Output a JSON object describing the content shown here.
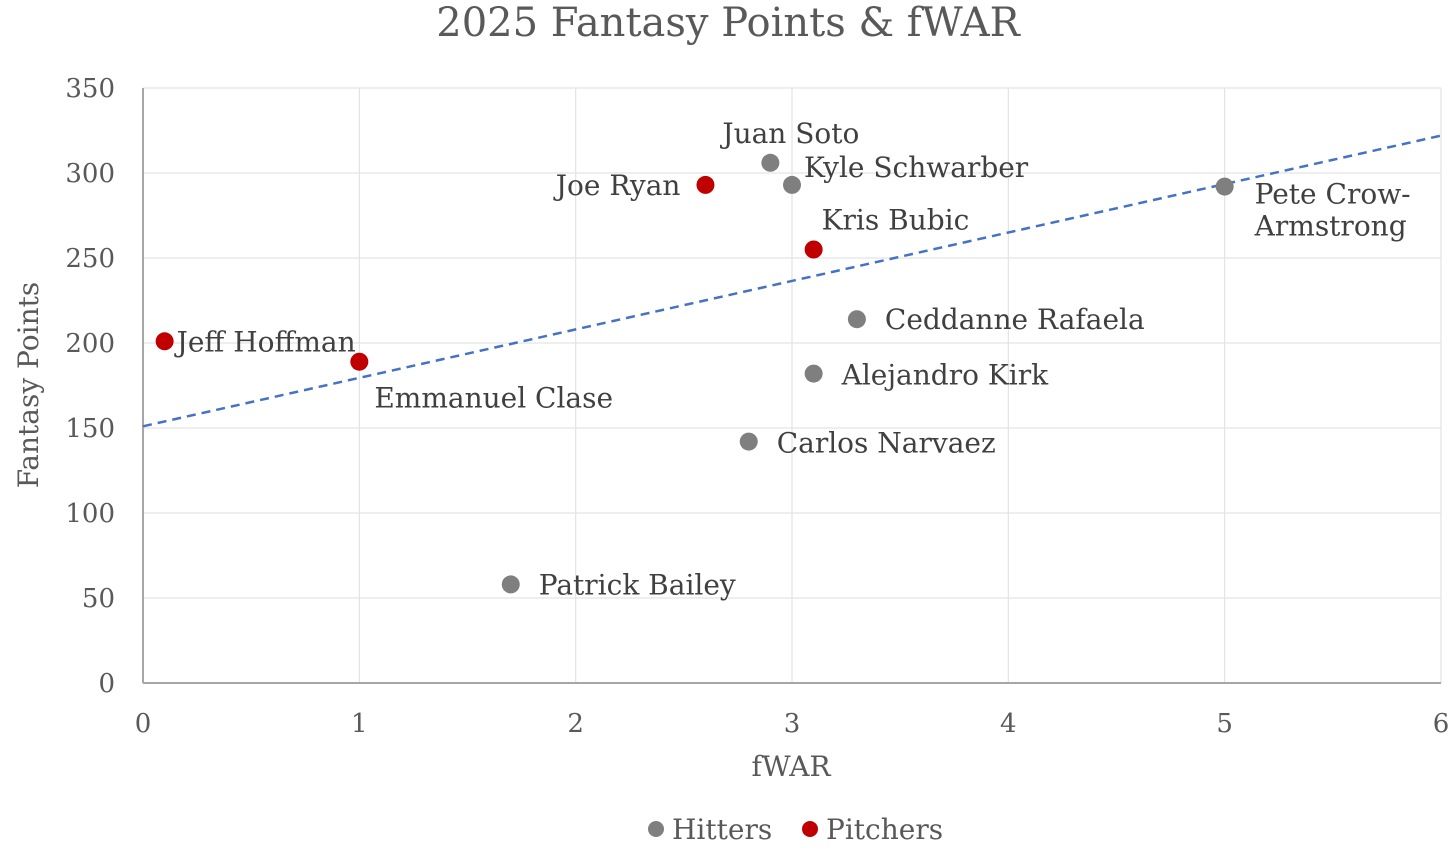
{
  "chart_data": {
    "type": "scatter",
    "title": "2025 Fantasy Points & fWAR",
    "xlabel": "fWAR",
    "ylabel": "Fantasy Points",
    "xlim": [
      0,
      6
    ],
    "ylim": [
      0,
      350
    ],
    "xticks": [
      "0",
      "1",
      "2",
      "3",
      "4",
      "5",
      "6"
    ],
    "yticks": [
      "0",
      "50",
      "100",
      "150",
      "200",
      "250",
      "300",
      "350"
    ],
    "grid": true,
    "legend_position": "bottom",
    "series": [
      {
        "name": "Hitters",
        "color": "#7f7f7f",
        "points": [
          {
            "label": "Juan Soto",
            "x": 2.9,
            "y": 306
          },
          {
            "label": "Kyle Schwarber",
            "x": 3.0,
            "y": 293
          },
          {
            "label": "Pete Crow-Armstrong",
            "x": 5.0,
            "y": 292
          },
          {
            "label": "Ceddanne Rafaela",
            "x": 3.3,
            "y": 214
          },
          {
            "label": "Alejandro Kirk",
            "x": 3.1,
            "y": 182
          },
          {
            "label": "Carlos Narvaez",
            "x": 2.8,
            "y": 142
          },
          {
            "label": "Patrick Bailey",
            "x": 1.7,
            "y": 58
          }
        ]
      },
      {
        "name": "Pitchers",
        "color": "#c00000",
        "points": [
          {
            "label": "Joe Ryan",
            "x": 2.6,
            "y": 293
          },
          {
            "label": "Kris Bubic",
            "x": 3.1,
            "y": 255
          },
          {
            "label": "Jeff Hoffman",
            "x": 0.1,
            "y": 201
          },
          {
            "label": "Emmanuel Clase",
            "x": 1.0,
            "y": 189
          }
        ]
      }
    ],
    "trendline": {
      "type": "linear",
      "color": "#4472c4",
      "style": "dashed",
      "start": {
        "x": 0,
        "y": 151
      },
      "end": {
        "x": 6,
        "y": 322
      }
    }
  }
}
